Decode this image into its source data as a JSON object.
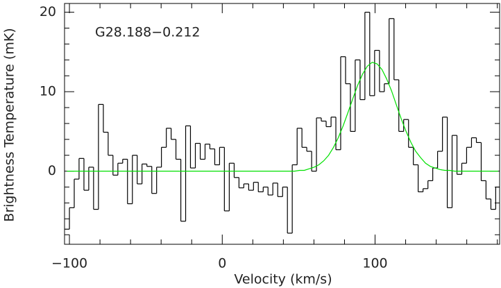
{
  "chart_data": {
    "type": "line",
    "annotation": "G28.188−0.212",
    "x_label": "Velocity (km/s)",
    "y_label": "Brightness Temperature (mK)",
    "x": [
      -101.6,
      -98.4,
      -95.3,
      -92.1,
      -88.9,
      -85.8,
      -82.6,
      -79.4,
      -76.2,
      -73.1,
      -69.9,
      -66.7,
      -63.6,
      -60.4,
      -57.2,
      -54.1,
      -50.9,
      -47.7,
      -44.5,
      -41.4,
      -38.2,
      -35.0,
      -31.9,
      -28.7,
      -25.5,
      -22.4,
      -19.2,
      -16.0,
      -12.8,
      -9.7,
      -6.5,
      -3.3,
      -0.2,
      3.0,
      6.2,
      9.4,
      12.5,
      15.7,
      18.9,
      22.0,
      25.2,
      28.4,
      31.5,
      34.7,
      37.9,
      41.1,
      44.2,
      47.4,
      50.6,
      53.7,
      56.9,
      60.1,
      63.2,
      66.4,
      69.6,
      72.8,
      75.9,
      79.1,
      82.3,
      85.4,
      88.6,
      91.8,
      94.9,
      98.1,
      101.3,
      104.5,
      107.6,
      110.8,
      114.0,
      117.1,
      120.3,
      123.5,
      126.6,
      129.8,
      133.0,
      136.2,
      139.3,
      142.5,
      145.7,
      148.8,
      152.0,
      155.2,
      158.3,
      161.5,
      164.7,
      167.9,
      171.0,
      174.2,
      177.4,
      180.5
    ],
    "series": [
      {
        "color": "#000000",
        "drawstyle": "steps-mid",
        "values": [
          -7.3,
          -4.6,
          -1.0,
          1.6,
          -2.4,
          0.5,
          -4.8,
          8.4,
          4.9,
          2.0,
          -0.5,
          1.0,
          1.5,
          -4.1,
          2.0,
          -1.6,
          0.9,
          0.6,
          -2.8,
          0.5,
          3.0,
          5.4,
          4.0,
          1.5,
          -6.3,
          5.7,
          0.4,
          3.5,
          1.5,
          3.4,
          2.8,
          0.8,
          3.0,
          -5.0,
          1.0,
          -0.8,
          -2.1,
          -1.6,
          -2.4,
          -1.4,
          -2.6,
          -2.0,
          -3.0,
          -1.5,
          -3.2,
          -2.0,
          -7.8,
          0.8,
          5.4,
          3.0,
          2.5,
          0.0,
          6.7,
          6.3,
          5.6,
          6.8,
          2.7,
          14.4,
          11.0,
          5.0,
          14.0,
          9.0,
          20.0,
          9.5,
          15.2,
          10.0,
          11.0,
          19.2,
          11.5,
          5.0,
          6.5,
          3.0,
          0.8,
          -2.6,
          -2.2,
          -1.2,
          0.4,
          2.5,
          6.8,
          -4.6,
          4.5,
          -0.4,
          1.0,
          3.0,
          4.2,
          3.6,
          -1.2,
          -3.5,
          -4.8,
          -2.0
        ]
      },
      {
        "color": "#00e000",
        "drawstyle": "default",
        "values": [
          0,
          0,
          0,
          0,
          0,
          0,
          0,
          0,
          0,
          0,
          0,
          0,
          0,
          0,
          0,
          0,
          0,
          0,
          0,
          0,
          0,
          0,
          0,
          0,
          0,
          0,
          0,
          0,
          0,
          0,
          0,
          0,
          0,
          0,
          0,
          0,
          0,
          0,
          0,
          0,
          0,
          0,
          0,
          0,
          0,
          0,
          0.0,
          0.0,
          0.1,
          0.1,
          0.3,
          0.5,
          0.8,
          1.3,
          2.0,
          3.0,
          4.2,
          5.7,
          7.4,
          9.1,
          10.8,
          12.2,
          13.2,
          13.7,
          13.5,
          12.8,
          11.6,
          10.1,
          8.3,
          6.6,
          5.0,
          3.6,
          2.5,
          1.7,
          1.0,
          0.6,
          0.4,
          0.2,
          0.1,
          0.1,
          0.0,
          0,
          0,
          0,
          0,
          0,
          0,
          0,
          0,
          0
        ]
      }
    ],
    "xlim": [
      -103.2,
      181.5
    ],
    "ylim": [
      -9.2,
      21.1
    ],
    "xticks": [
      {
        "value": -100,
        "label": "−100"
      },
      0,
      100
    ],
    "yticks": [
      0,
      10,
      20
    ],
    "xminorticks": [
      -80,
      -60,
      -40,
      -20,
      20,
      40,
      60,
      80,
      120,
      140,
      160,
      180
    ],
    "yminorticks": [
      -8,
      -6,
      -4,
      -2,
      2,
      4,
      6,
      8,
      12,
      14,
      16,
      18
    ]
  }
}
